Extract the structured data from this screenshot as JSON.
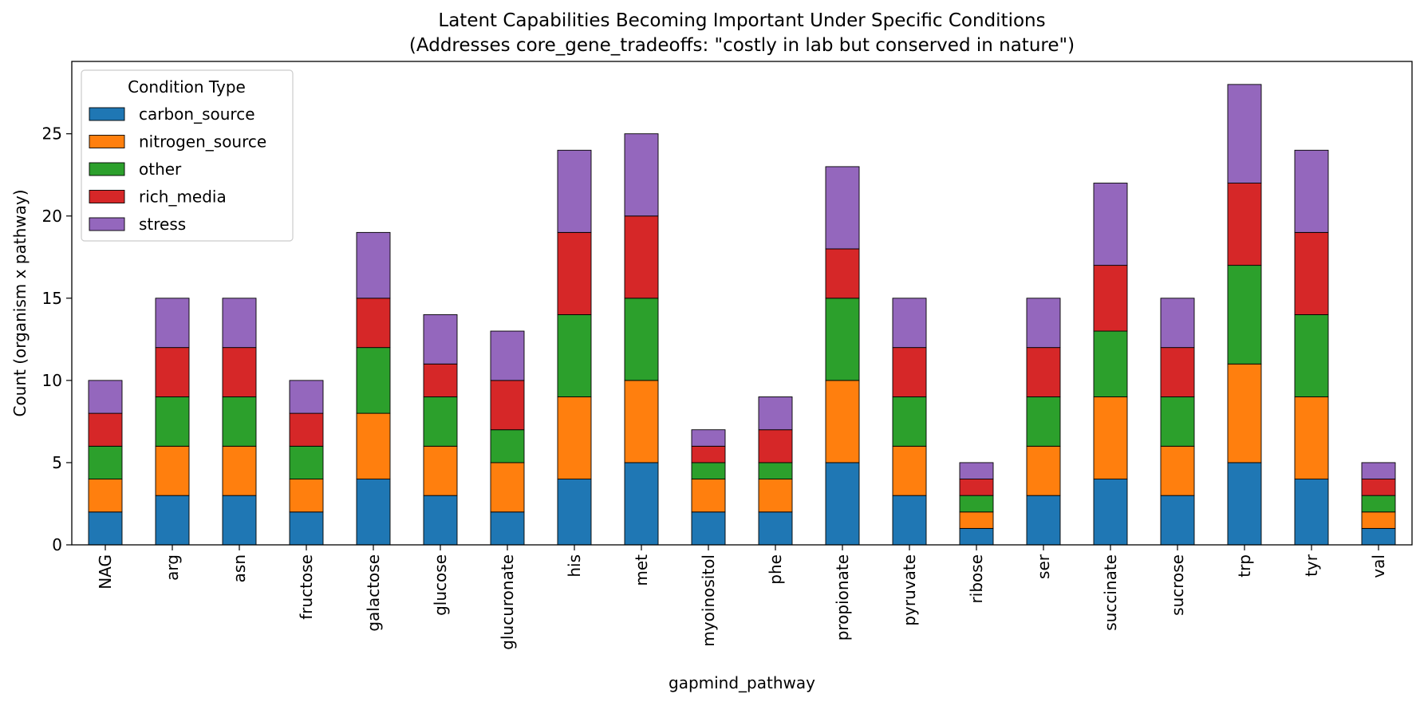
{
  "chart_data": {
    "type": "bar",
    "stacked": true,
    "title": "Latent Capabilities Becoming Important Under Specific Conditions",
    "subtitle": "(Addresses core_gene_tradeoffs: \"costly in lab but conserved in nature\")",
    "xlabel": "gapmind_pathway",
    "ylabel": "Count (organism x pathway)",
    "ylim": [
      0,
      29.4
    ],
    "yticks": [
      0,
      5,
      10,
      15,
      20,
      25
    ],
    "grid": false,
    "legend": {
      "title": "Condition Type",
      "placement": "top-left"
    },
    "categories": [
      "NAG",
      "arg",
      "asn",
      "fructose",
      "galactose",
      "glucose",
      "glucuronate",
      "his",
      "met",
      "myoinositol",
      "phe",
      "propionate",
      "pyruvate",
      "ribose",
      "ser",
      "succinate",
      "sucrose",
      "trp",
      "tyr",
      "val"
    ],
    "series": [
      {
        "name": "carbon_source",
        "color": "#1f77b4",
        "values": [
          2,
          3,
          3,
          2,
          4,
          3,
          2,
          4,
          5,
          2,
          2,
          5,
          3,
          1,
          3,
          4,
          3,
          5,
          4,
          1
        ]
      },
      {
        "name": "nitrogen_source",
        "color": "#ff7f0e",
        "values": [
          2,
          3,
          3,
          2,
          4,
          3,
          3,
          5,
          5,
          2,
          2,
          5,
          3,
          1,
          3,
          5,
          3,
          6,
          5,
          1
        ]
      },
      {
        "name": "other",
        "color": "#2ca02c",
        "values": [
          2,
          3,
          3,
          2,
          4,
          3,
          2,
          5,
          5,
          1,
          1,
          5,
          3,
          1,
          3,
          4,
          3,
          6,
          5,
          1
        ]
      },
      {
        "name": "rich_media",
        "color": "#d62728",
        "values": [
          2,
          3,
          3,
          2,
          3,
          2,
          3,
          5,
          5,
          1,
          2,
          3,
          3,
          1,
          3,
          4,
          3,
          5,
          5,
          1
        ]
      },
      {
        "name": "stress",
        "color": "#9467bd",
        "values": [
          2,
          3,
          3,
          2,
          4,
          3,
          3,
          5,
          5,
          1,
          2,
          5,
          3,
          1,
          3,
          5,
          3,
          6,
          5,
          1
        ]
      }
    ]
  }
}
